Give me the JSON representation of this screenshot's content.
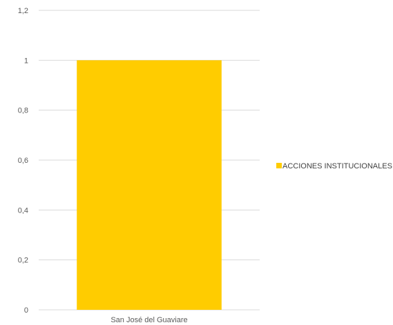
{
  "chart_data": {
    "type": "bar",
    "categories": [
      "San José del Guaviare"
    ],
    "series": [
      {
        "name": "ACCIONES INSTITUCIONALES",
        "values": [
          1
        ],
        "color": "#FFCC00"
      }
    ],
    "title": "",
    "xlabel": "",
    "ylabel": "",
    "ylim": [
      0,
      1.2
    ],
    "yticks": [
      "0",
      "0,2",
      "0,4",
      "0,6",
      "0,8",
      "1",
      "1,2"
    ],
    "grid": true,
    "legend_position": "right",
    "colors": {
      "grid": "#D9D9D9",
      "axis_text": "#595959"
    }
  }
}
